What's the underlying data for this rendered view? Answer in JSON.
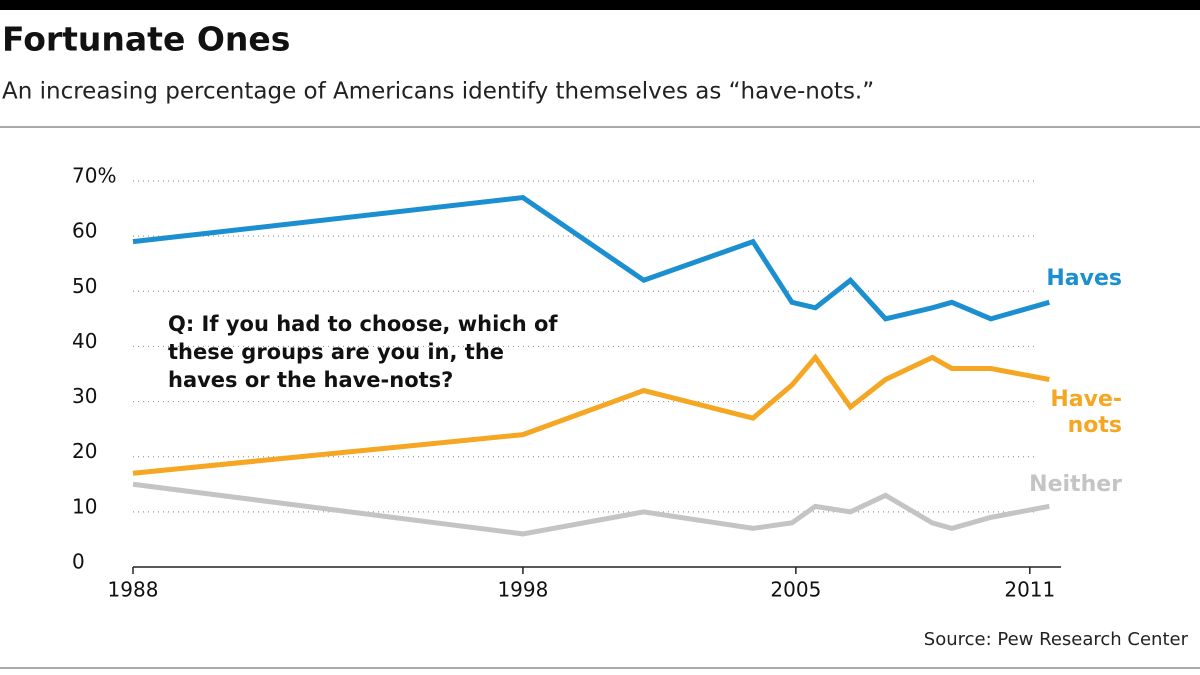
{
  "chart_data": {
    "type": "line",
    "title": "Fortunate Ones",
    "subtitle": "An increasing percentage of Americans identify themselves as “have-nots.”",
    "annotation": "Q: If you had to choose, which of these groups are you in, the haves or the have-nots?",
    "source": "Source: Pew Research Center",
    "x": [
      1988,
      1998,
      2001.1,
      2003.9,
      2004.9,
      2005.5,
      2006.4,
      2007.3,
      2008.5,
      2009,
      2010,
      2011.5
    ],
    "series": [
      {
        "name": "Haves",
        "color": "#1b8fcf",
        "values": [
          59,
          67,
          52,
          59,
          48,
          47,
          52,
          45,
          47,
          48,
          45,
          48
        ]
      },
      {
        "name": "Have-nots",
        "color": "#f5a623",
        "values": [
          17,
          24,
          32,
          27,
          33,
          38,
          29,
          34,
          38,
          36,
          36,
          34
        ]
      },
      {
        "name": "Neither",
        "color": "#c4c4c4",
        "values": [
          15,
          6,
          10,
          7,
          8,
          11,
          10,
          13,
          8,
          7,
          9,
          11
        ]
      }
    ],
    "xlim": [
      1988,
      2011.8
    ],
    "xticks": [
      1988,
      1998,
      2005,
      2011
    ],
    "ylim": [
      0,
      70
    ],
    "yticks": [
      0,
      10,
      20,
      30,
      40,
      50,
      60,
      {
        "value": 70,
        "label": "70%"
      }
    ],
    "grid": true
  }
}
